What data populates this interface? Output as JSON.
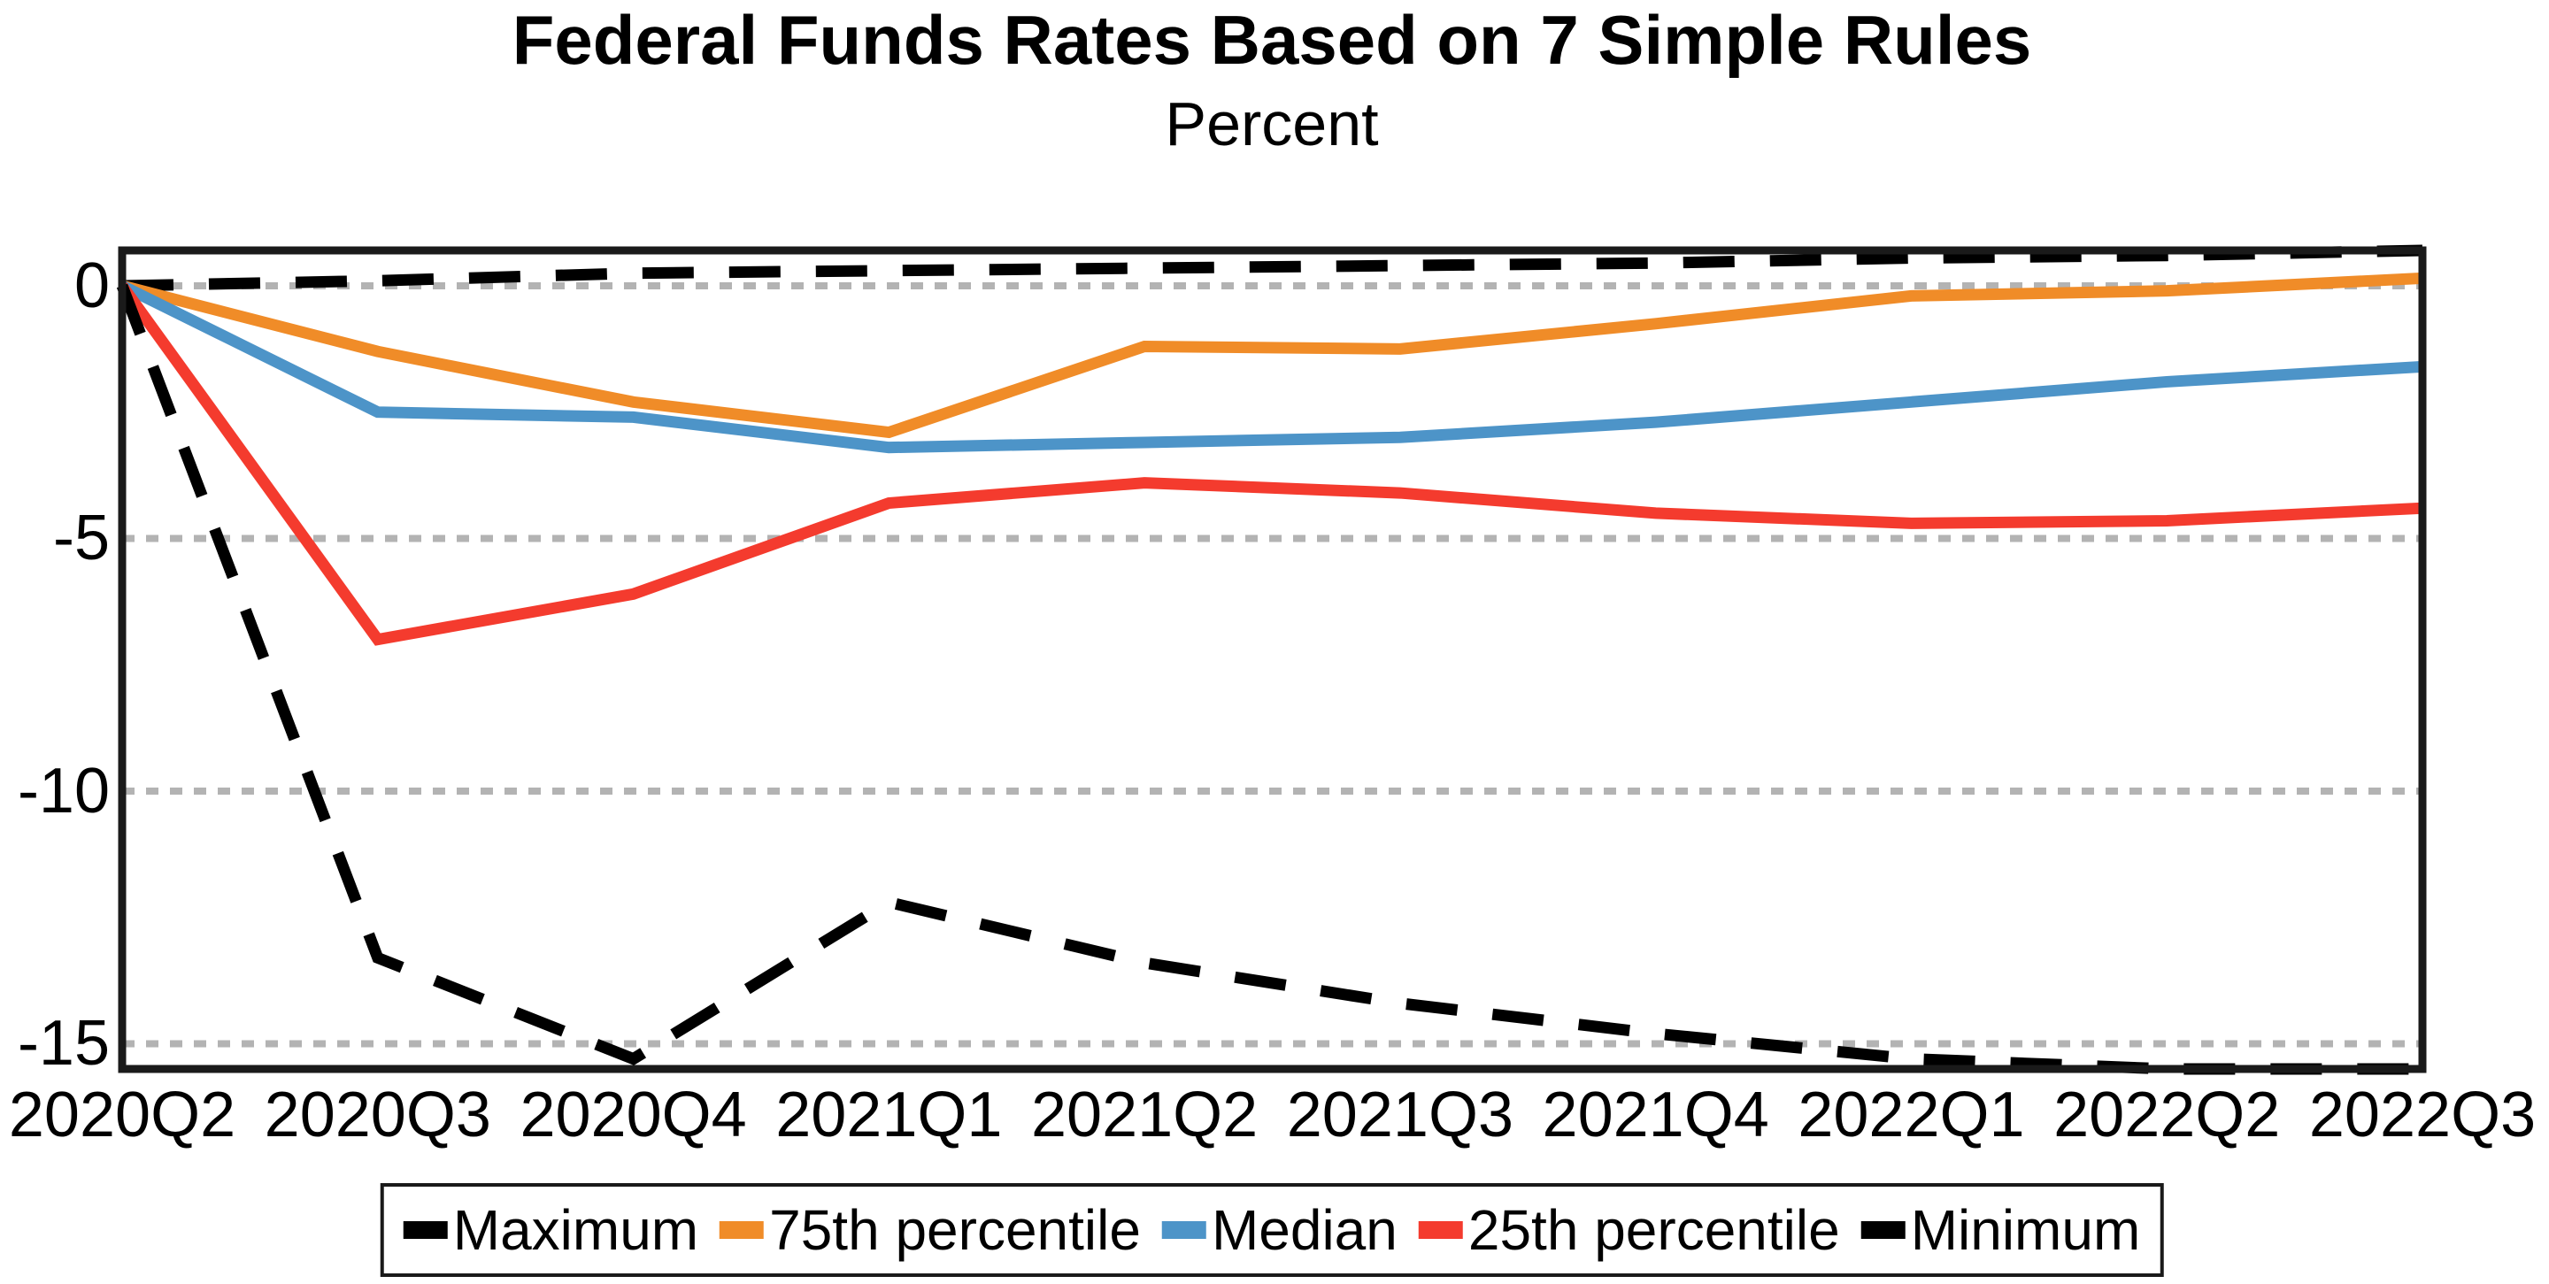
{
  "chart_data": {
    "type": "line",
    "title": "Federal Funds Rates Based on 7 Simple Rules",
    "subtitle": "Percent",
    "categories": [
      "2020Q2",
      "2020Q3",
      "2020Q4",
      "2021Q1",
      "2021Q2",
      "2021Q3",
      "2021Q4",
      "2022Q1",
      "2022Q2",
      "2022Q3"
    ],
    "series": [
      {
        "name": "Maximum",
        "color": "#000000",
        "dashed": true,
        "values": [
          0,
          0.1,
          0.25,
          0.3,
          0.35,
          0.4,
          0.45,
          0.55,
          0.6,
          0.7
        ]
      },
      {
        "name": "75th percentile",
        "color": "#F08C28",
        "dashed": false,
        "values": [
          0,
          -1.3,
          -2.3,
          -2.9,
          -1.2,
          -1.25,
          -0.75,
          -0.2,
          -0.1,
          0.15
        ]
      },
      {
        "name": "Median",
        "color": "#4D94C8",
        "dashed": false,
        "values": [
          0,
          -2.5,
          -2.6,
          -3.2,
          -3.1,
          -3.0,
          -2.7,
          -2.3,
          -1.9,
          -1.6
        ]
      },
      {
        "name": "25th percentile",
        "color": "#F43B2E",
        "dashed": false,
        "values": [
          0,
          -7.0,
          -6.1,
          -4.3,
          -3.9,
          -4.1,
          -4.5,
          -4.7,
          -4.65,
          -4.4
        ]
      },
      {
        "name": "Minimum",
        "color": "#000000",
        "dashed": true,
        "values": [
          0,
          -13.3,
          -15.3,
          -12.2,
          -13.4,
          -14.2,
          -14.8,
          -15.3,
          -15.5,
          -15.5
        ]
      }
    ],
    "yticks": [
      0,
      -5,
      -10,
      -15
    ],
    "yticklabels": [
      "0",
      "-5",
      "-10",
      "-15"
    ],
    "ylim": [
      -15.5,
      0.7
    ],
    "xlabel": "",
    "ylabel": "",
    "grid": "horizontal dotted at yticks",
    "gridline_color": "#b3b3b3",
    "axis_color": "#1a1a1a",
    "legend_position": "bottom"
  }
}
